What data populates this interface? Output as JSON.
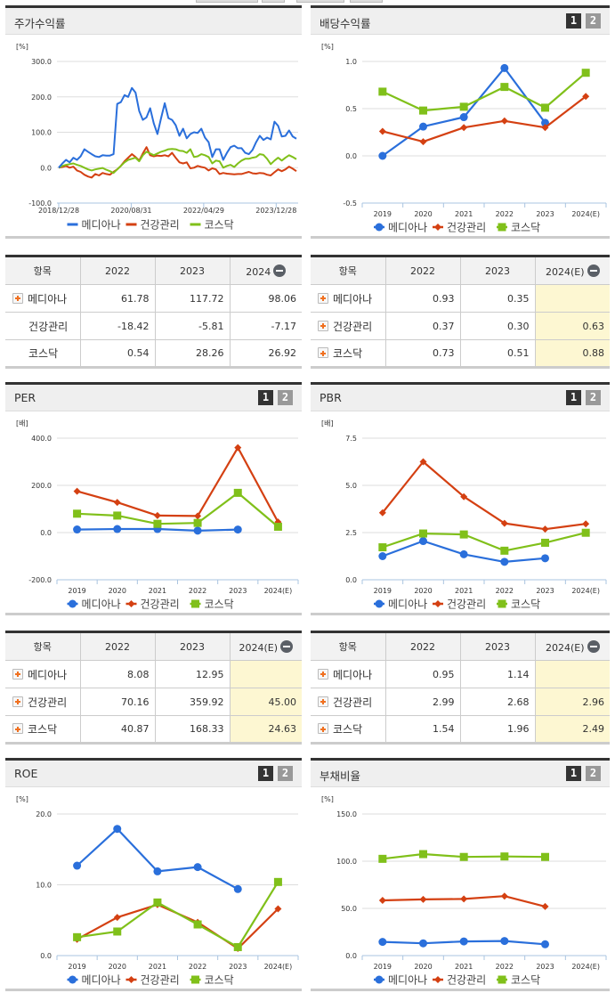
{
  "legend": [
    "메디아나",
    "건강관리",
    "코스닥"
  ],
  "colors": {
    "s1": "#2a6fdb",
    "s2": "#d44012",
    "s3": "#80c01a",
    "grid": "#dddddd",
    "axis": "#aac4e0"
  },
  "panels": {
    "price": {
      "title": "주가수익률"
    },
    "dividend": {
      "title": "배당수익률",
      "page1": "1",
      "page2": "2"
    },
    "per": {
      "title": "PER",
      "page1": "1",
      "page2": "2"
    },
    "pbr": {
      "title": "PBR",
      "page1": "1",
      "page2": "2"
    },
    "roe": {
      "title": "ROE",
      "page1": "1",
      "page2": "2"
    },
    "debt": {
      "title": "부채비율",
      "page1": "1",
      "page2": "2"
    }
  },
  "tables": {
    "price": {
      "headers": [
        "항목",
        "2022",
        "2023",
        "2024"
      ],
      "rows": [
        {
          "name": "메디아나",
          "plus": true,
          "values": [
            "61.78",
            "117.72",
            "98.06"
          ]
        },
        {
          "name": "건강관리",
          "plus": false,
          "values": [
            "-18.42",
            "-5.81",
            "-7.17"
          ]
        },
        {
          "name": "코스닥",
          "plus": false,
          "values": [
            "0.54",
            "28.26",
            "26.92"
          ]
        }
      ]
    },
    "dividend": {
      "headers": [
        "항목",
        "2022",
        "2023",
        "2024(E)"
      ],
      "rows": [
        {
          "name": "메디아나",
          "plus": true,
          "values": [
            "0.93",
            "0.35",
            ""
          ]
        },
        {
          "name": "건강관리",
          "plus": true,
          "values": [
            "0.37",
            "0.30",
            "0.63"
          ]
        },
        {
          "name": "코스닥",
          "plus": true,
          "values": [
            "0.73",
            "0.51",
            "0.88"
          ]
        }
      ]
    },
    "per": {
      "headers": [
        "항목",
        "2022",
        "2023",
        "2024(E)"
      ],
      "rows": [
        {
          "name": "메디아나",
          "plus": true,
          "values": [
            "8.08",
            "12.95",
            ""
          ]
        },
        {
          "name": "건강관리",
          "plus": true,
          "values": [
            "70.16",
            "359.92",
            "45.00"
          ]
        },
        {
          "name": "코스닥",
          "plus": true,
          "values": [
            "40.87",
            "168.33",
            "24.63"
          ]
        }
      ]
    },
    "pbr": {
      "headers": [
        "항목",
        "2022",
        "2023",
        "2024(E)"
      ],
      "rows": [
        {
          "name": "메디아나",
          "plus": true,
          "values": [
            "0.95",
            "1.14",
            ""
          ]
        },
        {
          "name": "건강관리",
          "plus": true,
          "values": [
            "2.99",
            "2.68",
            "2.96"
          ]
        },
        {
          "name": "코스닥",
          "plus": true,
          "values": [
            "1.54",
            "1.96",
            "2.49"
          ]
        }
      ]
    }
  },
  "chart_data": [
    {
      "id": "price",
      "type": "line",
      "title": "주가수익률",
      "ylabel": "[%]",
      "ylim": [
        -100,
        300
      ],
      "yticks": [
        "300.0",
        "200.0",
        "100.0",
        "0.0",
        "-100.0"
      ],
      "xticks": [
        "2018/12/28",
        "2020/08/31",
        "2022/04/29",
        "2023/12/28"
      ],
      "grid": true,
      "legend_position": "bottom",
      "series": [
        {
          "name": "메디아나",
          "values": [
            0,
            12,
            22,
            15,
            28,
            22,
            32,
            52,
            45,
            38,
            32,
            30,
            35,
            34,
            34,
            38,
            180,
            185,
            205,
            200,
            225,
            212,
            160,
            135,
            142,
            168,
            125,
            95,
            140,
            182,
            140,
            135,
            120,
            90,
            110,
            83,
            95,
            100,
            98,
            110,
            85,
            72,
            30,
            52,
            52,
            22,
            42,
            58,
            62,
            55,
            55,
            42,
            38,
            50,
            72,
            90,
            78,
            85,
            80,
            130,
            118,
            88,
            90,
            105,
            88,
            82
          ]
        },
        {
          "name": "건강관리",
          "values": [
            0,
            2,
            5,
            0,
            3,
            -8,
            -12,
            -20,
            -25,
            -28,
            -18,
            -22,
            -15,
            -18,
            -20,
            -12,
            -5,
            5,
            18,
            28,
            38,
            30,
            20,
            40,
            58,
            35,
            32,
            34,
            33,
            35,
            32,
            42,
            28,
            15,
            12,
            15,
            -2,
            0,
            5,
            2,
            0,
            -8,
            -2,
            -5,
            -18,
            -15,
            -17,
            -18,
            -19,
            -18,
            -18,
            -15,
            -12,
            -16,
            -17,
            -15,
            -16,
            -20,
            -22,
            -13,
            -5,
            -10,
            -5,
            3,
            -3,
            -10
          ]
        },
        {
          "name": "코스닥",
          "values": [
            0,
            5,
            8,
            10,
            12,
            8,
            5,
            0,
            -5,
            -8,
            -5,
            -3,
            -1,
            -6,
            -10,
            -15,
            -5,
            5,
            15,
            22,
            25,
            28,
            18,
            35,
            45,
            40,
            35,
            40,
            45,
            48,
            52,
            53,
            52,
            48,
            47,
            42,
            52,
            30,
            32,
            38,
            35,
            30,
            12,
            20,
            18,
            0,
            5,
            8,
            2,
            12,
            20,
            25,
            25,
            28,
            30,
            38,
            36,
            25,
            10,
            20,
            28,
            20,
            28,
            35,
            30,
            24
          ]
        }
      ]
    },
    {
      "id": "dividend",
      "type": "line",
      "title": "배당수익률",
      "ylabel": "[%]",
      "ylim": [
        -0.5,
        1.0
      ],
      "yticks": [
        "1.0",
        "0.5",
        "0.0",
        "-0.5"
      ],
      "categories": [
        "2019",
        "2020",
        "2021",
        "2022",
        "2023",
        "2024(E)"
      ],
      "grid": true,
      "legend_position": "bottom",
      "series": [
        {
          "name": "메디아나",
          "values": [
            0.0,
            0.31,
            0.41,
            0.93,
            0.35,
            null
          ]
        },
        {
          "name": "건강관리",
          "values": [
            0.26,
            0.15,
            0.3,
            0.37,
            0.3,
            0.63
          ]
        },
        {
          "name": "코스닥",
          "values": [
            0.68,
            0.48,
            0.52,
            0.73,
            0.51,
            0.88
          ]
        }
      ]
    },
    {
      "id": "per",
      "type": "line",
      "title": "PER",
      "ylabel": "[배]",
      "ylim": [
        -200,
        400
      ],
      "yticks": [
        "400.0",
        "200.0",
        "0.0",
        "-200.0"
      ],
      "categories": [
        "2019",
        "2020",
        "2021",
        "2022",
        "2023",
        "2024(E)"
      ],
      "grid": true,
      "legend_position": "bottom",
      "series": [
        {
          "name": "메디아나",
          "values": [
            13,
            15,
            15,
            8.08,
            12.95,
            null
          ]
        },
        {
          "name": "건강관리",
          "values": [
            175,
            128,
            72,
            70.16,
            359.92,
            45.0
          ]
        },
        {
          "name": "코스닥",
          "values": [
            80,
            72,
            37,
            40.87,
            168.33,
            24.63
          ]
        }
      ]
    },
    {
      "id": "pbr",
      "type": "line",
      "title": "PBR",
      "ylabel": "[배]",
      "ylim": [
        0,
        7.5
      ],
      "yticks": [
        "7.5",
        "5.0",
        "2.5",
        "0.0"
      ],
      "categories": [
        "2019",
        "2020",
        "2021",
        "2022",
        "2023",
        "2024(E)"
      ],
      "grid": true,
      "legend_position": "bottom",
      "series": [
        {
          "name": "메디아나",
          "values": [
            1.25,
            2.05,
            1.35,
            0.95,
            1.14,
            null
          ]
        },
        {
          "name": "건강관리",
          "values": [
            3.55,
            6.25,
            4.4,
            2.99,
            2.68,
            2.96
          ]
        },
        {
          "name": "코스닥",
          "values": [
            1.72,
            2.45,
            2.4,
            1.54,
            1.96,
            2.49
          ]
        }
      ]
    },
    {
      "id": "roe",
      "type": "line",
      "title": "ROE",
      "ylabel": "[%]",
      "ylim": [
        0,
        20
      ],
      "yticks": [
        "20.0",
        "10.0",
        "0.0"
      ],
      "categories": [
        "2019",
        "2020",
        "2021",
        "2022",
        "2023",
        "2024(E)"
      ],
      "grid": true,
      "legend_position": "bottom",
      "series": [
        {
          "name": "메디아나",
          "values": [
            12.7,
            17.9,
            11.9,
            12.5,
            9.4,
            null
          ]
        },
        {
          "name": "건강관리",
          "values": [
            2.3,
            5.4,
            7.2,
            4.7,
            1.0,
            6.6
          ]
        },
        {
          "name": "코스닥",
          "values": [
            2.6,
            3.4,
            7.5,
            4.4,
            1.2,
            10.4
          ]
        }
      ]
    },
    {
      "id": "debt",
      "type": "line",
      "title": "부채비율",
      "ylabel": "[%]",
      "ylim": [
        0,
        150
      ],
      "yticks": [
        "150.0",
        "100.0",
        "50.0",
        "0.0"
      ],
      "categories": [
        "2019",
        "2020",
        "2021",
        "2022",
        "2023",
        "2024(E)"
      ],
      "grid": true,
      "legend_position": "bottom",
      "series": [
        {
          "name": "메디아나",
          "values": [
            14.5,
            13.0,
            15.0,
            15.5,
            12.0,
            null
          ]
        },
        {
          "name": "건강관리",
          "values": [
            58.5,
            59.5,
            60.0,
            63.0,
            52.0,
            null
          ]
        },
        {
          "name": "코스닥",
          "values": [
            102.5,
            107.5,
            104.5,
            105.0,
            104.5,
            null
          ]
        }
      ]
    }
  ]
}
